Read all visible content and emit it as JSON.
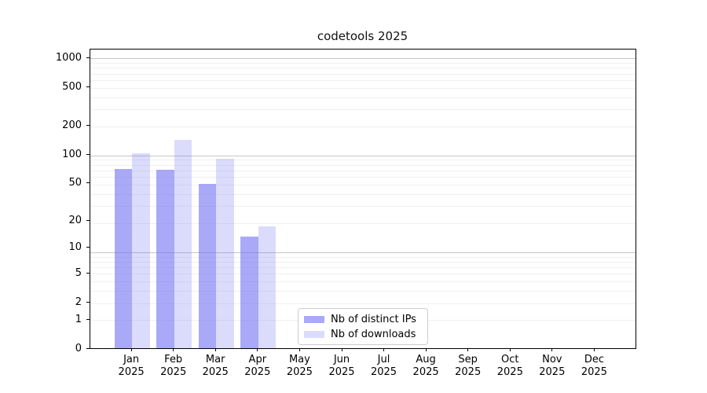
{
  "title": "codetools 2025",
  "legend": {
    "items": [
      {
        "label": "Nb of distinct IPs",
        "color": "rgba(112,112,242,0.6)"
      },
      {
        "label": "Nb of downloads",
        "color": "rgba(112,112,242,0.25)"
      }
    ]
  },
  "colors": {
    "bar_distinct_ips": "rgba(112,112,242,0.6)",
    "bar_downloads": "rgba(112,112,242,0.25)",
    "grid_major": "#c6c6c6",
    "grid_minor": "#f0f0f0",
    "axis": "#000000",
    "legend_border": "#cccccc"
  },
  "chart_data": {
    "type": "bar",
    "title": "codetools 2025",
    "categories": [
      "Jan",
      "Feb",
      "Mar",
      "Apr",
      "May",
      "Jun",
      "Jul",
      "Aug",
      "Sep",
      "Oct",
      "Nov",
      "Dec"
    ],
    "year": "2025",
    "series": [
      {
        "name": "Nb of distinct IPs",
        "values": [
          69,
          68,
          48,
          13,
          0,
          0,
          0,
          0,
          0,
          0,
          0,
          0
        ]
      },
      {
        "name": "Nb of downloads",
        "values": [
          100,
          140,
          88,
          17,
          0,
          0,
          0,
          0,
          0,
          0,
          0,
          0
        ]
      }
    ],
    "y_ticks": [
      0,
      1,
      2,
      5,
      10,
      20,
      50,
      100,
      200,
      500,
      1000
    ],
    "y_scale": "log10(value+1)",
    "ylim": [
      0,
      1236
    ],
    "xlabel": "",
    "ylabel": "",
    "grid": "horizontal, log major + minor",
    "legend_position": "inside bottom-center"
  }
}
